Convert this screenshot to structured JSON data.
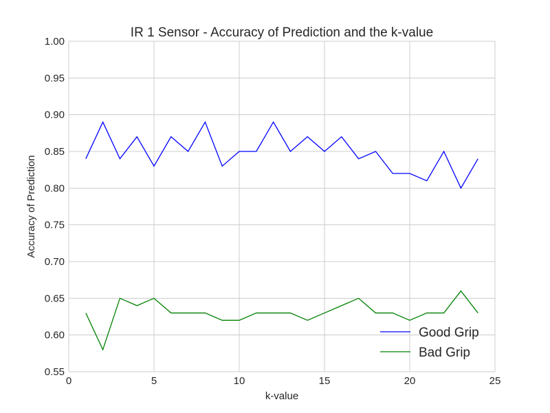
{
  "chart_data": {
    "type": "line",
    "title": "IR 1 Sensor - Accuracy of Prediction and the k-value",
    "xlabel": "k-value",
    "ylabel": "Accuracy of Prediction",
    "xlim": [
      0,
      25
    ],
    "ylim": [
      0.55,
      1.0
    ],
    "xticks": [
      "0",
      "5",
      "10",
      "15",
      "20",
      "25"
    ],
    "yticks": [
      "0.55",
      "0.60",
      "0.65",
      "0.70",
      "0.75",
      "0.80",
      "0.85",
      "0.90",
      "0.95",
      "1.00"
    ],
    "grid": true,
    "legend_position": "lower-right",
    "x": [
      1,
      2,
      3,
      4,
      5,
      6,
      7,
      8,
      9,
      10,
      11,
      12,
      13,
      14,
      15,
      16,
      17,
      18,
      19,
      20,
      21,
      22,
      23,
      24
    ],
    "series": [
      {
        "name": "Good Grip",
        "color": "#0000ff",
        "values": [
          0.84,
          0.89,
          0.84,
          0.87,
          0.83,
          0.87,
          0.85,
          0.89,
          0.83,
          0.85,
          0.85,
          0.89,
          0.85,
          0.87,
          0.85,
          0.87,
          0.84,
          0.85,
          0.82,
          0.82,
          0.81,
          0.85,
          0.8,
          0.84
        ]
      },
      {
        "name": "Bad Grip",
        "color": "#008000",
        "values": [
          0.63,
          0.58,
          0.65,
          0.64,
          0.65,
          0.63,
          0.63,
          0.63,
          0.62,
          0.62,
          0.63,
          0.63,
          0.63,
          0.62,
          0.63,
          0.64,
          0.65,
          0.63,
          0.63,
          0.62,
          0.63,
          0.63,
          0.66,
          0.63
        ]
      }
    ]
  }
}
